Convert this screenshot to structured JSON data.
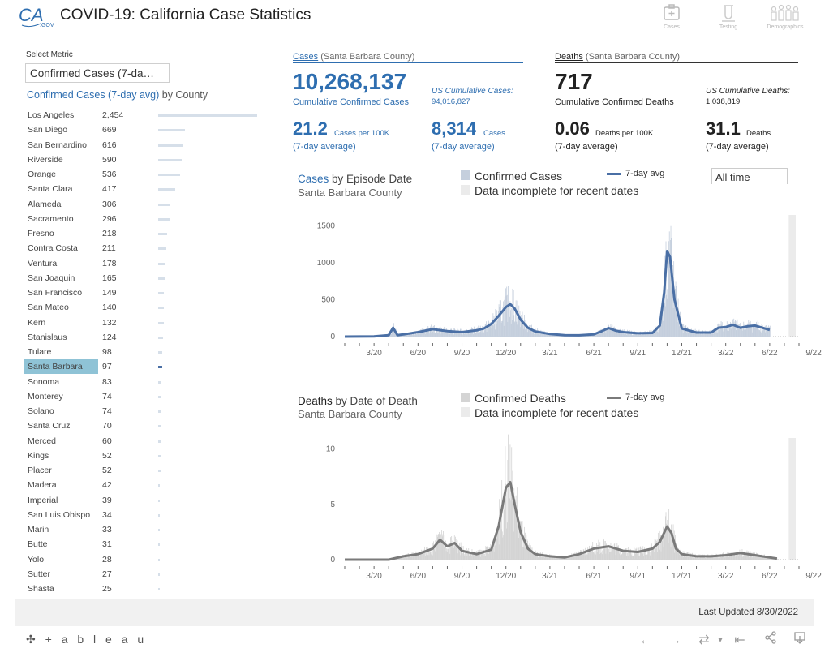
{
  "header": {
    "title": "COVID-19: California Case Statistics",
    "logo_text": "CA.GOV",
    "nav": [
      {
        "label": "Cases",
        "icon": "cases-icon"
      },
      {
        "label": "Testing",
        "icon": "testing-icon"
      },
      {
        "label": "Demographics",
        "icon": "demographics-icon"
      }
    ]
  },
  "left_panel": {
    "select_label": "Select Metric",
    "metric_value": "Confirmed Cases (7-da…",
    "title_metric": "Confirmed Cases (7-day avg)",
    "title_suffix": " by County",
    "selected_county": "Santa Barbara",
    "counties": [
      {
        "name": "Los Angeles",
        "value": "2,454"
      },
      {
        "name": "San Diego",
        "value": "669"
      },
      {
        "name": "San Bernardino",
        "value": "616"
      },
      {
        "name": "Riverside",
        "value": "590"
      },
      {
        "name": "Orange",
        "value": "536"
      },
      {
        "name": "Santa Clara",
        "value": "417"
      },
      {
        "name": "Alameda",
        "value": "306"
      },
      {
        "name": "Sacramento",
        "value": "296"
      },
      {
        "name": "Fresno",
        "value": "218"
      },
      {
        "name": "Contra Costa",
        "value": "211"
      },
      {
        "name": "Ventura",
        "value": "178"
      },
      {
        "name": "San Joaquin",
        "value": "165"
      },
      {
        "name": "San Francisco",
        "value": "149"
      },
      {
        "name": "San Mateo",
        "value": "140"
      },
      {
        "name": "Kern",
        "value": "132"
      },
      {
        "name": "Stanislaus",
        "value": "124"
      },
      {
        "name": "Tulare",
        "value": "98"
      },
      {
        "name": "Santa Barbara",
        "value": "97"
      },
      {
        "name": "Sonoma",
        "value": "83"
      },
      {
        "name": "Monterey",
        "value": "74"
      },
      {
        "name": "Solano",
        "value": "74"
      },
      {
        "name": "Santa Cruz",
        "value": "70"
      },
      {
        "name": "Merced",
        "value": "60"
      },
      {
        "name": "Kings",
        "value": "52"
      },
      {
        "name": "Placer",
        "value": "52"
      },
      {
        "name": "Madera",
        "value": "42"
      },
      {
        "name": "Imperial",
        "value": "39"
      },
      {
        "name": "San Luis Obispo",
        "value": "34"
      },
      {
        "name": "Marin",
        "value": "33"
      },
      {
        "name": "Butte",
        "value": "31"
      },
      {
        "name": "Yolo",
        "value": "28"
      },
      {
        "name": "Sutter",
        "value": "27"
      },
      {
        "name": "Shasta",
        "value": "25"
      }
    ]
  },
  "cases_kpi": {
    "head_main": "Cases",
    "head_county": " (Santa Barbara County)",
    "cumulative": "10,268,137",
    "cumulative_label": "Cumulative Confirmed Cases",
    "us_label": "US Cumulative Cases:",
    "us_value": "94,016,827",
    "per100k": "21.2",
    "per100k_label": "Cases per 100K",
    "per100k_note": "(7-day average)",
    "avg": "8,314",
    "avg_label": "Cases",
    "avg_note": "(7-day average)"
  },
  "deaths_kpi": {
    "head_main": "Deaths",
    "head_county": " (Santa Barbara County)",
    "cumulative": "717",
    "cumulative_label": "Cumulative Confirmed Deaths",
    "us_label": "US Cumulative Deaths:",
    "us_value": "1,038,819",
    "per100k": "0.06",
    "per100k_label": "Deaths per 100K",
    "per100k_note": "(7-day average)",
    "avg": "31.1",
    "avg_label": "Deaths",
    "avg_note": "(7-day average)"
  },
  "cases_chart_labels": {
    "title_main": "Cases",
    "title_rest": " by Episode Date",
    "subtitle": "Santa Barbara County",
    "legend_bars": "Confirmed Cases",
    "legend_line": "7-day avg",
    "legend_incomplete": "Data incomplete for recent dates",
    "time_filter": "All time"
  },
  "deaths_chart_labels": {
    "title_main": "Deaths",
    "title_rest": " by Date of Death",
    "subtitle": "Santa Barbara County",
    "legend_bars": "Confirmed Deaths",
    "legend_line": "7-day avg",
    "legend_incomplete": "Data incomplete for recent dates"
  },
  "chart_data": [
    {
      "type": "bar",
      "title": "Cases by Episode Date",
      "subtitle": "Santa Barbara County",
      "ylim": [
        0,
        1650
      ],
      "yticks": [
        0,
        500,
        1000,
        1500
      ],
      "xticks": [
        "3/20",
        "6/20",
        "9/20",
        "12/20",
        "3/21",
        "6/21",
        "9/21",
        "12/21",
        "3/22",
        "6/22",
        "9/22"
      ],
      "x_month_range": [
        1,
        32
      ],
      "series": [
        {
          "name": "7-day avg",
          "kind": "line",
          "color": "#4a6fa5",
          "points": [
            [
              1,
              0
            ],
            [
              3,
              2
            ],
            [
              4,
              20
            ],
            [
              4.3,
              120
            ],
            [
              4.6,
              20
            ],
            [
              5,
              30
            ],
            [
              6,
              60
            ],
            [
              7,
              100
            ],
            [
              8,
              75
            ],
            [
              9,
              60
            ],
            [
              10,
              85
            ],
            [
              10.5,
              110
            ],
            [
              11,
              170
            ],
            [
              11.5,
              280
            ],
            [
              12,
              400
            ],
            [
              12.3,
              440
            ],
            [
              12.6,
              380
            ],
            [
              13,
              230
            ],
            [
              13.5,
              120
            ],
            [
              14,
              70
            ],
            [
              15,
              35
            ],
            [
              16,
              20
            ],
            [
              17,
              18
            ],
            [
              18,
              30
            ],
            [
              18.5,
              70
            ],
            [
              19,
              115
            ],
            [
              19.5,
              80
            ],
            [
              20,
              60
            ],
            [
              21,
              45
            ],
            [
              22,
              50
            ],
            [
              22.5,
              150
            ],
            [
              22.8,
              600
            ],
            [
              23,
              1160
            ],
            [
              23.2,
              1080
            ],
            [
              23.5,
              500
            ],
            [
              24,
              110
            ],
            [
              25,
              55
            ],
            [
              26,
              55
            ],
            [
              26.5,
              120
            ],
            [
              27,
              130
            ],
            [
              27.5,
              160
            ],
            [
              28,
              120
            ],
            [
              28.5,
              140
            ],
            [
              29,
              150
            ],
            [
              29.5,
              120
            ],
            [
              30,
              90
            ]
          ]
        },
        {
          "name": "Confirmed Cases",
          "kind": "bars",
          "color": "#c5cfdd"
        }
      ],
      "incomplete_from_month": 31.3,
      "color_bars": "#c5cfdd",
      "color_line": "#4a6fa5"
    },
    {
      "type": "bar",
      "title": "Deaths by Date of Death",
      "subtitle": "Santa Barbara County",
      "ylim": [
        0,
        11
      ],
      "yticks": [
        0,
        5,
        10
      ],
      "xticks": [
        "3/20",
        "6/20",
        "9/20",
        "12/20",
        "3/21",
        "6/21",
        "9/21",
        "12/21",
        "3/22",
        "6/22",
        "9/22"
      ],
      "x_month_range": [
        1,
        32
      ],
      "series": [
        {
          "name": "7-day avg",
          "kind": "line",
          "color": "#7a7a7a",
          "points": [
            [
              1,
              0
            ],
            [
              4,
              0
            ],
            [
              5,
              0.3
            ],
            [
              6,
              0.5
            ],
            [
              7,
              1
            ],
            [
              7.5,
              1.8
            ],
            [
              8,
              1.2
            ],
            [
              8.5,
              1.5
            ],
            [
              9,
              0.8
            ],
            [
              10,
              0.5
            ],
            [
              11,
              0.9
            ],
            [
              11.5,
              3
            ],
            [
              12,
              6.5
            ],
            [
              12.3,
              7
            ],
            [
              12.6,
              5
            ],
            [
              13,
              2.5
            ],
            [
              13.5,
              1
            ],
            [
              14,
              0.5
            ],
            [
              15,
              0.3
            ],
            [
              16,
              0.2
            ],
            [
              17,
              0.5
            ],
            [
              18,
              1
            ],
            [
              19,
              1.2
            ],
            [
              20,
              0.8
            ],
            [
              21,
              0.7
            ],
            [
              22,
              1
            ],
            [
              22.5,
              1.6
            ],
            [
              23,
              3
            ],
            [
              23.3,
              2.4
            ],
            [
              23.6,
              1
            ],
            [
              24,
              0.5
            ],
            [
              25,
              0.3
            ],
            [
              26,
              0.3
            ],
            [
              27,
              0.4
            ],
            [
              28,
              0.6
            ],
            [
              29,
              0.4
            ],
            [
              30,
              0.2
            ],
            [
              30.5,
              0.1
            ]
          ]
        },
        {
          "name": "Confirmed Deaths",
          "kind": "bars",
          "color": "#d4d4d4"
        }
      ],
      "incomplete_from_month": 31.3,
      "color_bars": "#d4d4d4",
      "color_line": "#7a7a7a"
    }
  ],
  "footer": {
    "last_updated": "Last Updated 8/30/2022",
    "tableau_logo": "+ a b l e a u"
  }
}
